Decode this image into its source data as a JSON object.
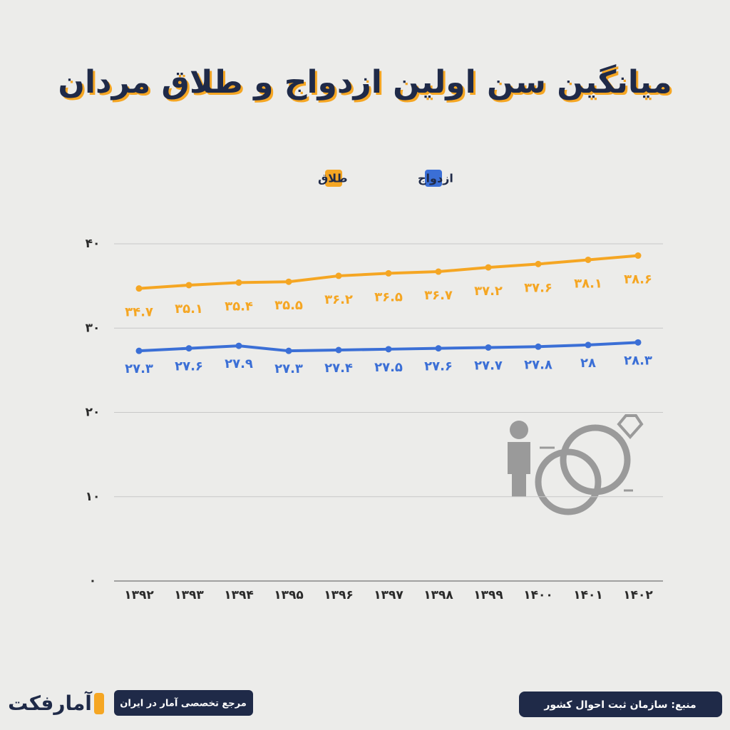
{
  "chart_data": {
    "type": "line",
    "title": "میانگین سن اولین ازدواج و طلاق مردان",
    "categories": [
      "۱۳۹۲",
      "۱۳۹۳",
      "۱۳۹۴",
      "۱۳۹۵",
      "۱۳۹۶",
      "۱۳۹۷",
      "۱۳۹۸",
      "۱۳۹۹",
      "۱۴۰۰",
      "۱۴۰۱",
      "۱۴۰۲"
    ],
    "series": [
      {
        "name": "ازدواج",
        "color": "#3b6fd6",
        "values": [
          27.3,
          27.6,
          27.9,
          27.3,
          27.4,
          27.5,
          27.6,
          27.7,
          27.8,
          28,
          28.3
        ],
        "value_labels": [
          "۲۷.۳",
          "۲۷.۶",
          "۲۷.۹",
          "۲۷.۳",
          "۲۷.۴",
          "۲۷.۵",
          "۲۷.۶",
          "۲۷.۷",
          "۲۷.۸",
          "۲۸",
          "۲۸.۳"
        ]
      },
      {
        "name": "طلاق",
        "color": "#f5a623",
        "values": [
          34.7,
          35.1,
          35.4,
          35.5,
          36.2,
          36.5,
          36.7,
          37.2,
          37.6,
          38.1,
          38.6
        ],
        "value_labels": [
          "۳۴.۷",
          "۳۵.۱",
          "۳۵.۴",
          "۳۵.۵",
          "۳۶.۲",
          "۳۶.۵",
          "۳۶.۷",
          "۳۷.۲",
          "۳۷.۶",
          "۳۸.۱",
          "۳۸.۶"
        ]
      }
    ],
    "ylim": [
      0,
      40
    ],
    "yticks": [
      {
        "value": 0,
        "label": "۰"
      },
      {
        "value": 10,
        "label": "۱۰"
      },
      {
        "value": 20,
        "label": "۲۰"
      },
      {
        "value": 30,
        "label": "۳۰"
      },
      {
        "value": 40,
        "label": "۴۰"
      }
    ],
    "grid": true,
    "legend": "top",
    "source": "منبع: سازمان ثبت احوال کشور",
    "brand": "آمارفکت",
    "tagline": "مرجع تخصصی آمار در ایران"
  }
}
